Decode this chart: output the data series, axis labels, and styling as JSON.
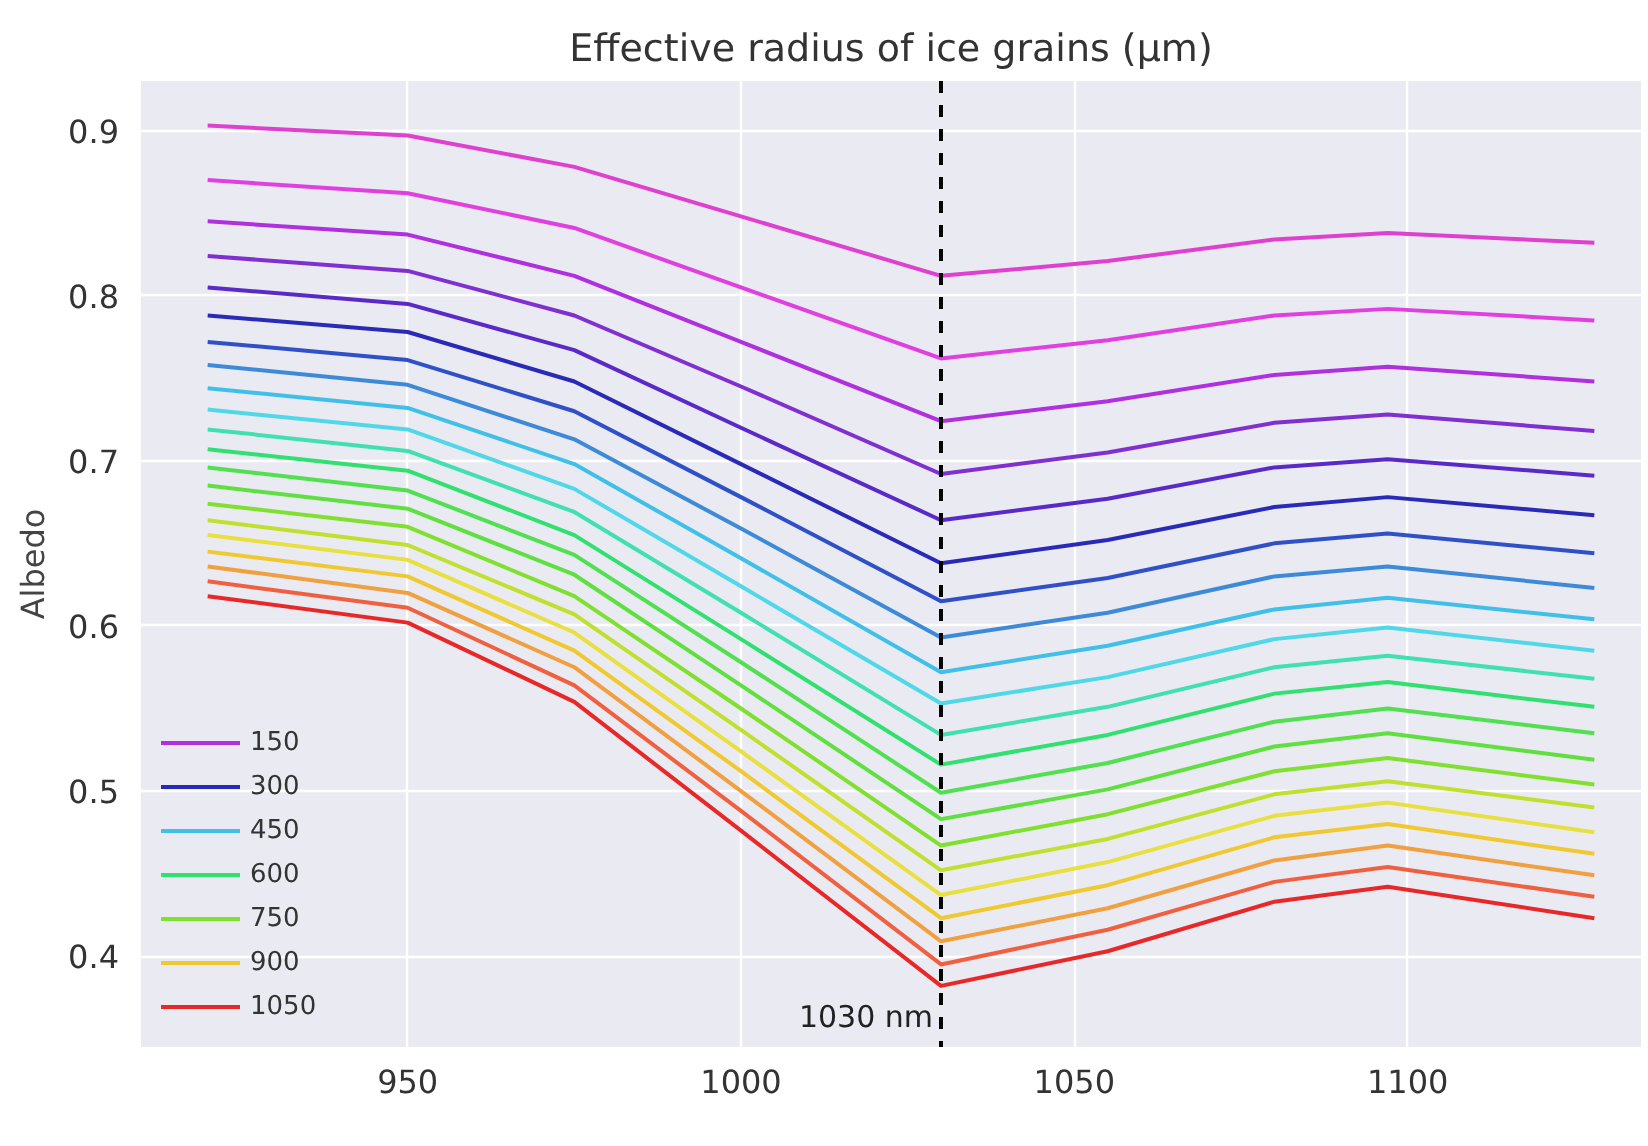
{
  "chart_data": {
    "type": "line",
    "title": "Effective radius of ice grains (µm)",
    "ylabel": "Albedo",
    "x": [
      920,
      950,
      975,
      1000,
      1030,
      1055,
      1080,
      1097,
      1128
    ],
    "xlim": [
      910,
      1135
    ],
    "ylim": [
      0.345,
      0.93
    ],
    "xticks": [
      950,
      1000,
      1050,
      1100
    ],
    "yticks": [
      0.4,
      0.5,
      0.6,
      0.7,
      0.8,
      0.9
    ],
    "grid": true,
    "legend": "bottom left",
    "line_style": "solid",
    "marker": "none",
    "ref_lines": [
      {
        "axis": "x",
        "value": 1030,
        "label": "1030 nm",
        "color": "#000000",
        "line_style": "dashed"
      }
    ],
    "series": [
      {
        "color": "#e040d0",
        "values": [
          0.903,
          0.897,
          0.878,
          0.848,
          0.812,
          0.821,
          0.834,
          0.838,
          0.832
        ]
      },
      {
        "color": "#e040e0",
        "values": [
          0.87,
          0.862,
          0.841,
          0.805,
          0.762,
          0.773,
          0.788,
          0.792,
          0.785
        ]
      },
      {
        "name": "150",
        "color": "#b030e0",
        "values": [
          0.845,
          0.837,
          0.812,
          0.772,
          0.724,
          0.736,
          0.752,
          0.757,
          0.748
        ]
      },
      {
        "color": "#8030d0",
        "values": [
          0.824,
          0.815,
          0.788,
          0.745,
          0.692,
          0.705,
          0.723,
          0.728,
          0.718
        ]
      },
      {
        "color": "#5a2ac8",
        "values": [
          0.805,
          0.795,
          0.767,
          0.72,
          0.664,
          0.677,
          0.696,
          0.701,
          0.691
        ]
      },
      {
        "name": "300",
        "color": "#2a2ab8",
        "values": [
          0.788,
          0.778,
          0.748,
          0.698,
          0.638,
          0.652,
          0.672,
          0.678,
          0.667
        ]
      },
      {
        "color": "#3050c8",
        "values": [
          0.772,
          0.761,
          0.73,
          0.678,
          0.615,
          0.629,
          0.65,
          0.656,
          0.644
        ]
      },
      {
        "color": "#3c8ad8",
        "values": [
          0.758,
          0.746,
          0.713,
          0.659,
          0.593,
          0.608,
          0.63,
          0.636,
          0.623
        ]
      },
      {
        "name": "450",
        "color": "#40c0e8",
        "values": [
          0.744,
          0.732,
          0.698,
          0.641,
          0.572,
          0.588,
          0.61,
          0.617,
          0.604
        ]
      },
      {
        "color": "#50d8e8",
        "values": [
          0.731,
          0.719,
          0.683,
          0.624,
          0.553,
          0.569,
          0.592,
          0.599,
          0.585
        ]
      },
      {
        "color": "#40e0b0",
        "values": [
          0.719,
          0.706,
          0.669,
          0.608,
          0.534,
          0.551,
          0.575,
          0.582,
          0.568
        ]
      },
      {
        "name": "600",
        "color": "#30e070",
        "values": [
          0.707,
          0.694,
          0.655,
          0.592,
          0.516,
          0.534,
          0.559,
          0.566,
          0.551
        ]
      },
      {
        "color": "#50e050",
        "values": [
          0.696,
          0.682,
          0.643,
          0.578,
          0.499,
          0.517,
          0.542,
          0.55,
          0.535
        ]
      },
      {
        "color": "#60e040",
        "values": [
          0.685,
          0.671,
          0.631,
          0.564,
          0.483,
          0.501,
          0.527,
          0.535,
          0.519
        ]
      },
      {
        "name": "750",
        "color": "#80e030",
        "values": [
          0.674,
          0.66,
          0.618,
          0.55,
          0.467,
          0.486,
          0.512,
          0.52,
          0.504
        ]
      },
      {
        "color": "#c0e030",
        "values": [
          0.664,
          0.649,
          0.607,
          0.537,
          0.452,
          0.471,
          0.498,
          0.506,
          0.49
        ]
      },
      {
        "color": "#e8e040",
        "values": [
          0.655,
          0.64,
          0.596,
          0.524,
          0.437,
          0.457,
          0.485,
          0.493,
          0.475
        ]
      },
      {
        "name": "900",
        "color": "#f0c830",
        "values": [
          0.645,
          0.63,
          0.585,
          0.512,
          0.423,
          0.443,
          0.472,
          0.48,
          0.462
        ]
      },
      {
        "color": "#f0a040",
        "values": [
          0.636,
          0.62,
          0.575,
          0.5,
          0.409,
          0.429,
          0.458,
          0.467,
          0.449
        ]
      },
      {
        "color": "#f06040",
        "values": [
          0.627,
          0.611,
          0.564,
          0.488,
          0.395,
          0.416,
          0.445,
          0.454,
          0.436
        ]
      },
      {
        "name": "1050",
        "color": "#e82828",
        "values": [
          0.618,
          0.602,
          0.554,
          0.476,
          0.382,
          0.403,
          0.433,
          0.442,
          0.423
        ]
      }
    ]
  }
}
